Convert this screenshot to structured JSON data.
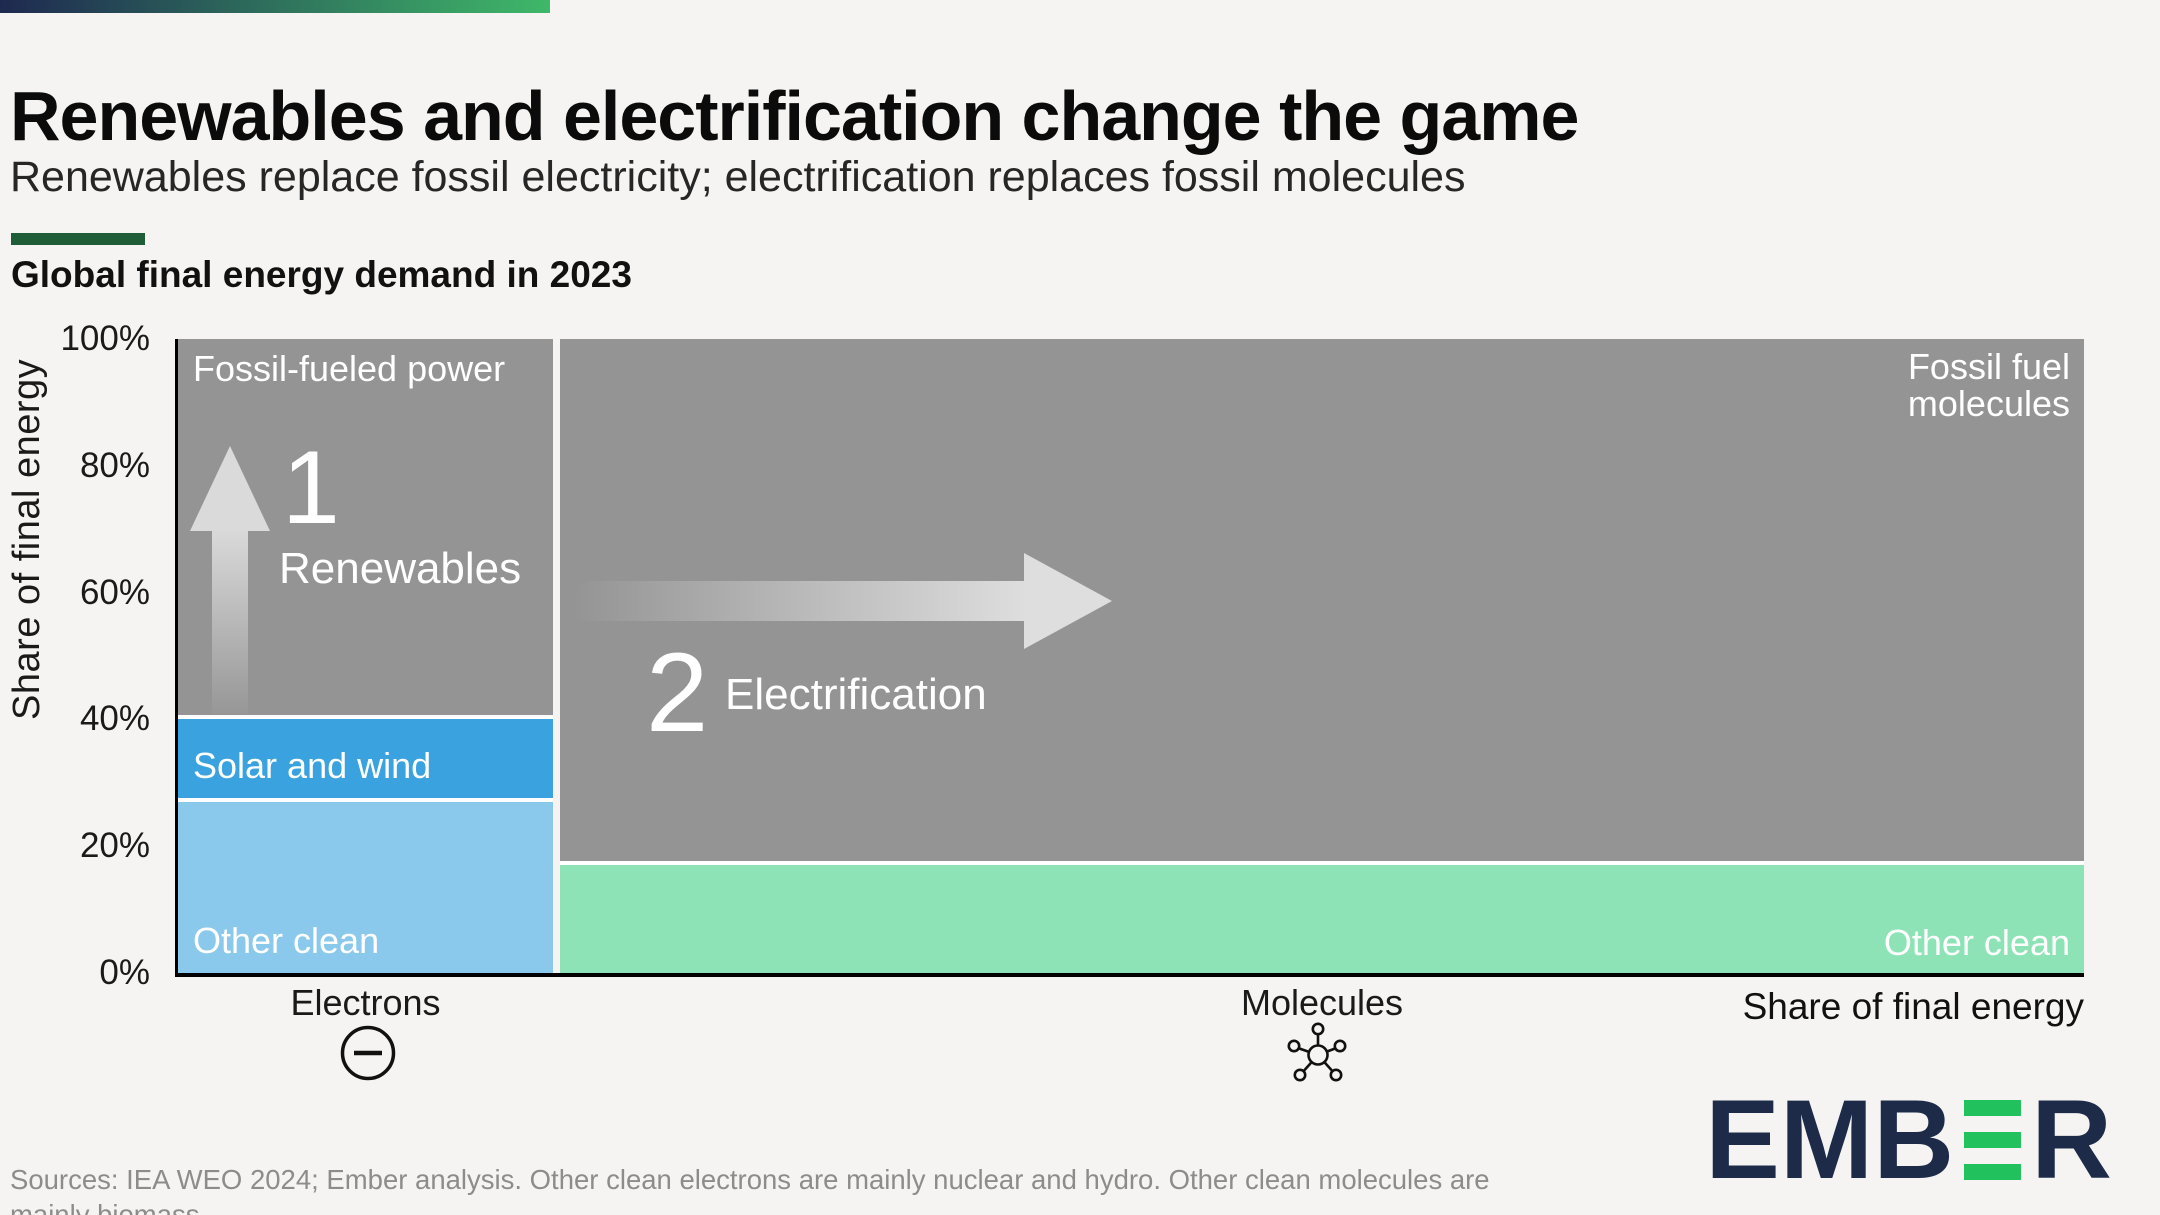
{
  "page": {
    "background_color": "#f5f4f2"
  },
  "top_bar": {
    "gradient_from": "#1e2950",
    "gradient_to": "#3fb869"
  },
  "header": {
    "title": "Renewables and electrification change the game",
    "subtitle": "Renewables replace fossil electricity; electrification replaces fossil molecules",
    "accent_bar_color": "#1f5c38",
    "chart_heading": "Global final energy demand in 2023"
  },
  "chart_data": {
    "type": "marimekko",
    "title": "Global final energy demand in 2023",
    "ylabel": "Share of final energy",
    "xlabel_right": "Share of final energy",
    "ylim": [
      0,
      100
    ],
    "y_ticks": [
      "100%",
      "80%",
      "60%",
      "40%",
      "20%",
      "0%"
    ],
    "grid": false,
    "columns": [
      {
        "key": "electrons",
        "label": "Electrons",
        "icon": "electron-minus-icon",
        "width_pct": 19.7,
        "segments": [
          {
            "key": "fossil-power",
            "label": "Fossil-fueled power",
            "value": 60,
            "color": "#949494"
          },
          {
            "key": "solar-wind",
            "label": "Solar and wind",
            "value": 13,
            "color": "#3aa2de"
          },
          {
            "key": "other-clean-electrons",
            "label": "Other clean",
            "value": 27,
            "color": "#8bc9ec"
          }
        ]
      },
      {
        "key": "molecules",
        "label": "Molecules",
        "icon": "molecule-icon",
        "width_pct": 80.3,
        "segments": [
          {
            "key": "fossil-molecules",
            "label": "Fossil fuel molecules",
            "value": 83,
            "color": "#949494"
          },
          {
            "key": "other-clean-molecules",
            "label": "Other clean",
            "value": 17,
            "color": "#8de3b5"
          }
        ]
      }
    ],
    "annotations": [
      {
        "key": "renewables",
        "number": "1",
        "label": "Renewables",
        "direction": "up"
      },
      {
        "key": "electrification",
        "number": "2",
        "label": "Electrification",
        "direction": "right"
      }
    ]
  },
  "footer": {
    "source_line1": "Sources: IEA WEO 2024; Ember analysis.  Other clean electrons are mainly nuclear and hydro. Other clean molecules are",
    "source_line2": "mainly biomass"
  },
  "logo": {
    "text_left": "EMB",
    "text_right": "R",
    "navy": "#1d2b49",
    "green": "#21c25e"
  }
}
